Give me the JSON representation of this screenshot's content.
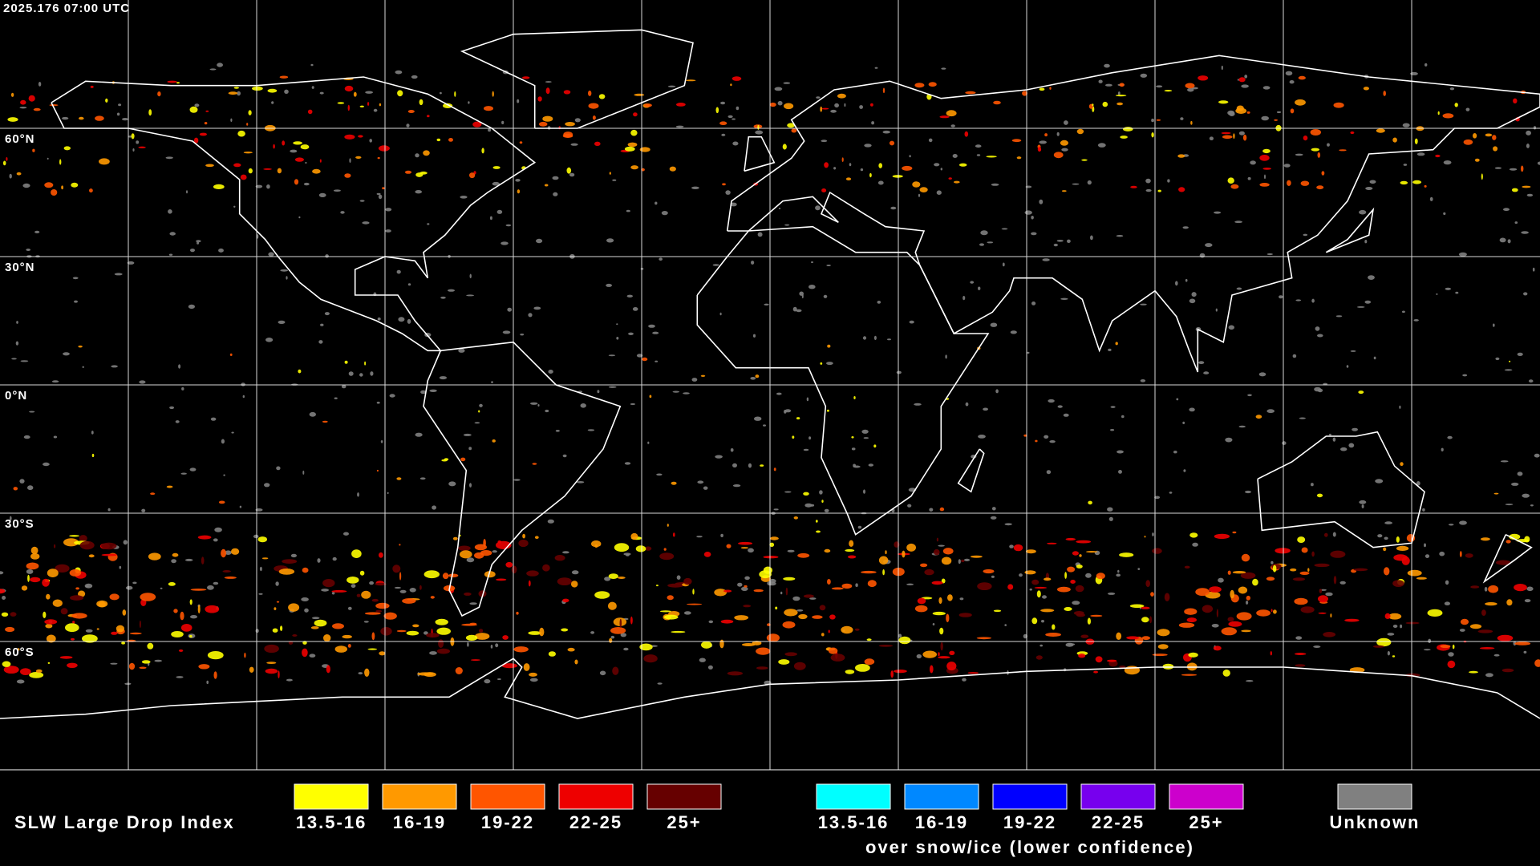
{
  "header": {
    "timestamp": "2025.176 07:00 UTC"
  },
  "map": {
    "lat_labels": [
      "60°N",
      "30°N",
      "0°N",
      "30°S",
      "60°S"
    ]
  },
  "legend": {
    "title": "SLW Large Drop Index",
    "groups": [
      {
        "items": [
          {
            "label": "13.5-16",
            "color": "#ffff00"
          },
          {
            "label": "16-19",
            "color": "#ff9900"
          },
          {
            "label": "19-22",
            "color": "#ff5500"
          },
          {
            "label": "22-25",
            "color": "#ee0000"
          },
          {
            "label": "25+",
            "color": "#660000"
          }
        ]
      },
      {
        "items": [
          {
            "label": "13.5-16",
            "color": "#00ffff"
          },
          {
            "label": "16-19",
            "color": "#0088ff"
          },
          {
            "label": "19-22",
            "color": "#0000ff"
          },
          {
            "label": "22-25",
            "color": "#7700ee"
          },
          {
            "label": "25+",
            "color": "#cc00cc"
          }
        ],
        "caption": "over snow/ice (lower confidence)"
      }
    ],
    "unknown": {
      "label": "Unknown",
      "color": "#808080"
    }
  }
}
